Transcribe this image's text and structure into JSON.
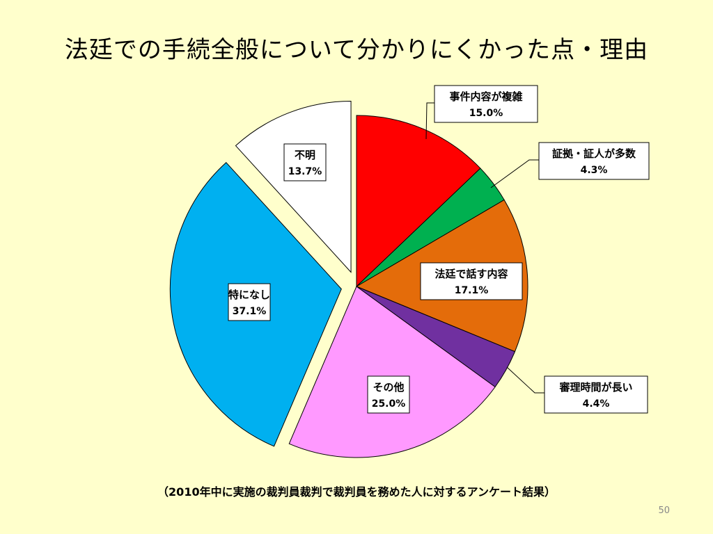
{
  "slide": {
    "title": "法廷での手続全般について分かりにくかった点・理由",
    "footnote": "（2010年中に実施の裁判員裁判で裁判員を務めた人に対するアンケート結果）",
    "page_number": "50"
  },
  "chart_data": {
    "type": "pie",
    "title": "法廷での手続全般について分かりにくかった点・理由",
    "start_angle_deg": 0,
    "direction": "clockwise",
    "slices": [
      {
        "label": "事件内容が複雑",
        "value": 15.0,
        "display": "15.0%",
        "color": "#ff0000",
        "exploded": false
      },
      {
        "label": "証拠・証人が多数",
        "value": 4.3,
        "display": "4.3%",
        "color": "#00b050",
        "exploded": false
      },
      {
        "label": "法廷で話す内容",
        "value": 17.1,
        "display": "17.1%",
        "color": "#e46c0a",
        "exploded": false
      },
      {
        "label": "審理時間が長い",
        "value": 4.4,
        "display": "4.4%",
        "color": "#7030a0",
        "exploded": false
      },
      {
        "label": "その他",
        "value": 25.0,
        "display": "25.0%",
        "color": "#ff99ff",
        "exploded": false
      },
      {
        "label": "特になし",
        "value": 37.1,
        "display": "37.1%",
        "color": "#00b0f0",
        "exploded": true
      },
      {
        "label": "不明",
        "value": 13.7,
        "display": "13.7%",
        "color": "#ffffff",
        "exploded": true
      }
    ]
  }
}
